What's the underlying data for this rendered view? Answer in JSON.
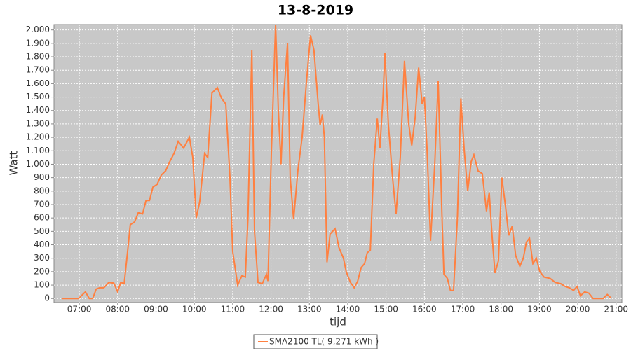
{
  "chart_data": {
    "type": "line",
    "title": "13-8-2019",
    "x_label": "tijd",
    "y_label": "Watt",
    "xlim": [
      6.34,
      21.15
    ],
    "ylim": [
      -30,
      2040
    ],
    "grid": true,
    "legend": "bottom",
    "xticks": [
      {
        "value": 7,
        "label": "07:00"
      },
      {
        "value": 8,
        "label": "08:00"
      },
      {
        "value": 9,
        "label": "09:00"
      },
      {
        "value": 10,
        "label": "10:00"
      },
      {
        "value": 11,
        "label": "11:00"
      },
      {
        "value": 12,
        "label": "12:00"
      },
      {
        "value": 13,
        "label": "13:00"
      },
      {
        "value": 14,
        "label": "14:00"
      },
      {
        "value": 15,
        "label": "15:00"
      },
      {
        "value": 16,
        "label": "16:00"
      },
      {
        "value": 17,
        "label": "17:00"
      },
      {
        "value": 18,
        "label": "18:00"
      },
      {
        "value": 19,
        "label": "19:00"
      },
      {
        "value": 20,
        "label": "20:00"
      },
      {
        "value": 21,
        "label": "21:00"
      }
    ],
    "yticks": [
      0,
      100,
      200,
      300,
      400,
      500,
      600,
      700,
      800,
      900,
      {
        "value": 1000,
        "label": "1.000"
      },
      {
        "value": 1100,
        "label": "1.100"
      },
      {
        "value": 1200,
        "label": "1.200"
      },
      {
        "value": 1300,
        "label": "1.300"
      },
      {
        "value": 1400,
        "label": "1.400"
      },
      {
        "value": 1500,
        "label": "1.500"
      },
      {
        "value": 1600,
        "label": "1.600"
      },
      {
        "value": 1700,
        "label": "1.700"
      },
      {
        "value": 1800,
        "label": "1.800"
      },
      {
        "value": 1900,
        "label": "1.900"
      },
      {
        "value": 2000,
        "label": "2.000"
      }
    ],
    "x": [
      6.54,
      6.98,
      7.16,
      7.26,
      7.35,
      7.44,
      7.53,
      7.64,
      7.77,
      7.9,
      8.0,
      8.08,
      8.17,
      8.26,
      8.33,
      8.44,
      8.54,
      8.65,
      8.74,
      8.83,
      8.92,
      9.03,
      9.14,
      9.25,
      9.36,
      9.47,
      9.58,
      9.72,
      9.87,
      9.96,
      10.05,
      10.14,
      10.27,
      10.35,
      10.46,
      10.6,
      10.71,
      10.82,
      10.93,
      11.0,
      11.13,
      11.24,
      11.33,
      11.4,
      11.5,
      11.57,
      11.66,
      11.77,
      11.88,
      11.92,
      12.01,
      12.12,
      12.19,
      12.26,
      12.33,
      12.43,
      12.5,
      12.59,
      12.7,
      12.81,
      12.92,
      13.03,
      13.12,
      13.23,
      13.28,
      13.34,
      13.39,
      13.46,
      13.54,
      13.67,
      13.77,
      13.89,
      13.96,
      14.07,
      14.17,
      14.26,
      14.35,
      14.44,
      14.51,
      14.59,
      14.68,
      14.77,
      14.84,
      14.92,
      14.97,
      15.06,
      15.17,
      15.26,
      15.37,
      15.48,
      15.59,
      15.67,
      15.76,
      15.85,
      15.94,
      16.0,
      16.07,
      16.16,
      16.27,
      16.36,
      16.46,
      16.51,
      16.6,
      16.68,
      16.76,
      16.86,
      16.95,
      17.04,
      17.13,
      17.22,
      17.29,
      17.4,
      17.51,
      17.62,
      17.69,
      17.77,
      17.84,
      17.93,
      18.02,
      18.11,
      18.2,
      18.29,
      18.38,
      18.49,
      18.58,
      18.66,
      18.74,
      18.83,
      18.92,
      19.01,
      19.12,
      19.28,
      19.41,
      19.56,
      19.67,
      19.78,
      19.89,
      19.98,
      20.07,
      20.18,
      20.29,
      20.4,
      20.66,
      20.77,
      20.88
    ],
    "series": [
      {
        "name": "SMA2100 TL( 9,271 kWh )",
        "color": "#ff8040",
        "values": [
          0,
          0,
          50,
          0,
          0,
          70,
          80,
          80,
          120,
          115,
          50,
          120,
          110,
          350,
          550,
          570,
          640,
          630,
          730,
          730,
          830,
          850,
          920,
          950,
          1020,
          1080,
          1170,
          1120,
          1200,
          1050,
          600,
          720,
          1080,
          1050,
          1530,
          1570,
          1490,
          1450,
          900,
          350,
          100,
          170,
          160,
          600,
          1850,
          500,
          120,
          110,
          180,
          130,
          1100,
          2040,
          1400,
          1000,
          1500,
          1900,
          900,
          590,
          950,
          1200,
          1600,
          1960,
          1850,
          1450,
          1290,
          1370,
          1200,
          270,
          480,
          520,
          380,
          300,
          200,
          120,
          80,
          130,
          230,
          260,
          340,
          360,
          1000,
          1340,
          1120,
          1500,
          1830,
          1300,
          900,
          630,
          1050,
          1770,
          1300,
          1140,
          1350,
          1720,
          1450,
          1500,
          1100,
          430,
          1000,
          1620,
          600,
          180,
          150,
          60,
          60,
          600,
          1490,
          1100,
          800,
          1020,
          1070,
          950,
          930,
          650,
          790,
          450,
          190,
          280,
          900,
          700,
          470,
          540,
          320,
          240,
          300,
          420,
          450,
          260,
          300,
          200,
          160,
          150,
          120,
          110,
          90,
          80,
          60,
          90,
          20,
          50,
          40,
          0,
          0,
          30,
          0
        ]
      }
    ]
  }
}
